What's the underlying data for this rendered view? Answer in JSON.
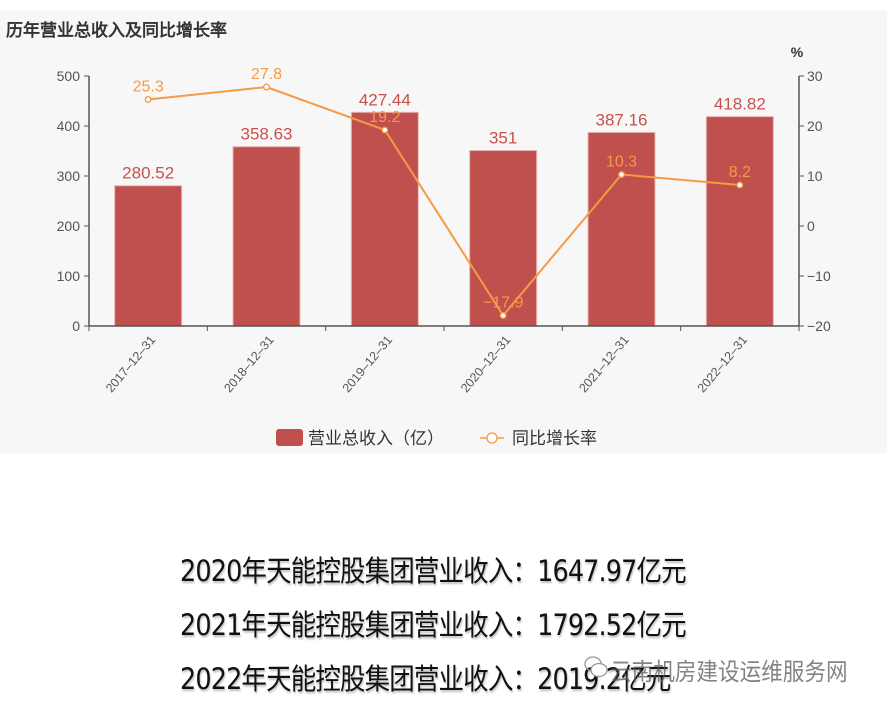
{
  "chart": {
    "title": "历年营业总收入及同比增长率",
    "right_axis_unit": "%",
    "legend": {
      "bar_label": "营业总收入（亿）",
      "line_label": "同比增长率"
    }
  },
  "chart_data": {
    "type": "bar+line",
    "title": "历年营业总收入及同比增长率",
    "categories": [
      "2017-12-31",
      "2018-12-31",
      "2019-12-31",
      "2020-12-31",
      "2021-12-31",
      "2022-12-31"
    ],
    "series": [
      {
        "name": "营业总收入（亿）",
        "type": "bar",
        "axis": "left",
        "color": "#c0504d",
        "values": [
          280.52,
          358.63,
          427.44,
          351,
          387.16,
          418.82
        ]
      },
      {
        "name": "同比增长率",
        "type": "line",
        "axis": "right",
        "color": "#f59a45",
        "values": [
          25.3,
          27.8,
          19.2,
          -17.9,
          10.3,
          8.2
        ]
      }
    ],
    "left_axis": {
      "ylim": [
        0,
        500
      ],
      "ticks": [
        0,
        100,
        200,
        300,
        400,
        500
      ]
    },
    "right_axis": {
      "label": "%",
      "ylim": [
        -20,
        30
      ],
      "ticks": [
        -20,
        -10,
        0,
        10,
        20,
        30
      ]
    },
    "grid": false,
    "legend_position": "bottom"
  },
  "captions": [
    {
      "text": "2020年天能控股集团营业收入：1647.97亿元"
    },
    {
      "text": "2021年天能控股集团营业收入：1792.52亿元"
    },
    {
      "text": "2022年天能控股集团营业收入：2019.2亿元"
    }
  ],
  "watermark": {
    "text": "云南机房建设运维服务网"
  }
}
